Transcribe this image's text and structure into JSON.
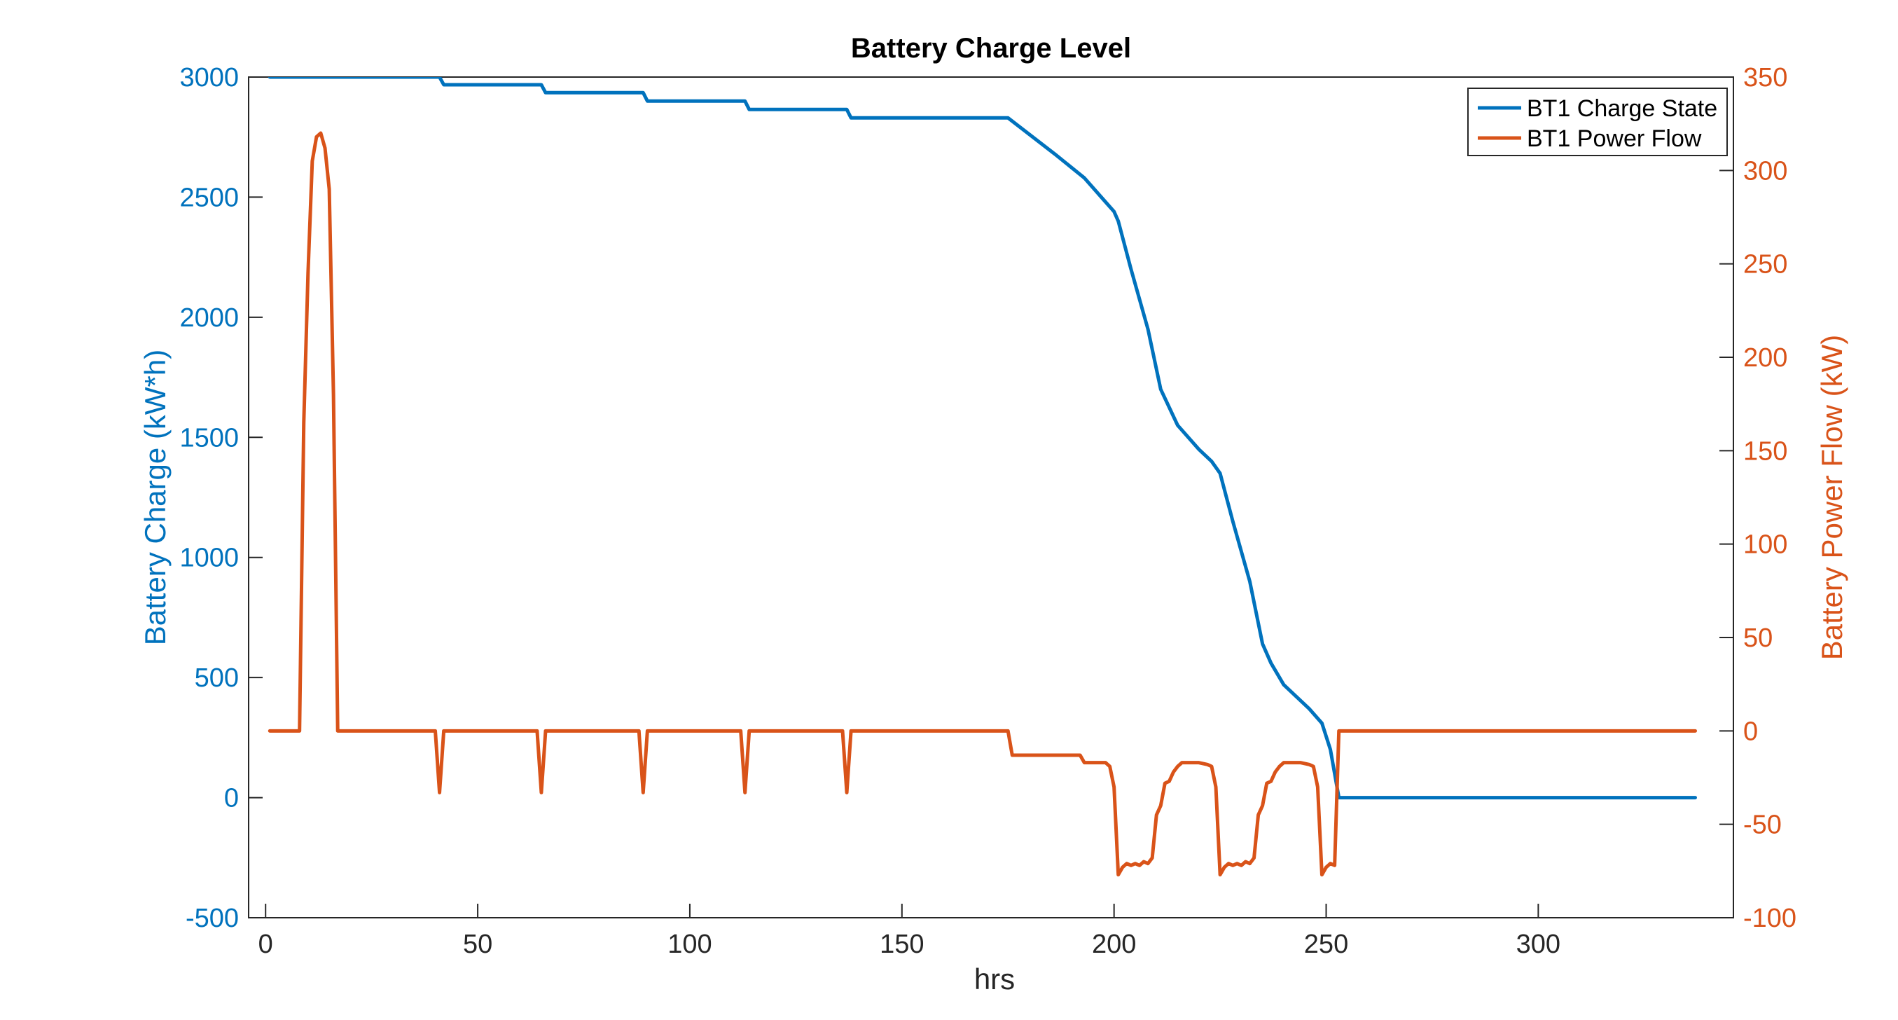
{
  "chart_data": {
    "type": "line",
    "title": "Battery Charge Level",
    "xlabel": "hrs",
    "ylabel_left": "Battery Charge (kW*h)",
    "ylabel_right": "Battery Power Flow (kW)",
    "xlim": [
      -4,
      346
    ],
    "ylim_left": [
      -500,
      3000
    ],
    "ylim_right": [
      -100,
      350
    ],
    "x_ticks": [
      0,
      50,
      100,
      150,
      200,
      250,
      300
    ],
    "y_ticks_left": [
      -500,
      0,
      500,
      1000,
      1500,
      2000,
      2500,
      3000
    ],
    "y_ticks_right": [
      -100,
      -50,
      0,
      50,
      100,
      150,
      200,
      250,
      300,
      350
    ],
    "grid": false,
    "legend_position": "top-right",
    "colors": {
      "left_axis": "#0072BD",
      "right_axis": "#D95319",
      "axes": "#262626"
    },
    "series": [
      {
        "name": "BT1 Charge State",
        "axis": "left",
        "color": "#0072BD",
        "points": [
          [
            1,
            3000
          ],
          [
            41,
            3000
          ],
          [
            42,
            2968
          ],
          [
            65,
            2968
          ],
          [
            66,
            2935
          ],
          [
            89,
            2935
          ],
          [
            90,
            2900
          ],
          [
            113,
            2900
          ],
          [
            114,
            2865
          ],
          [
            137,
            2865
          ],
          [
            138,
            2830
          ],
          [
            175,
            2830
          ],
          [
            186,
            2680
          ],
          [
            193,
            2580
          ],
          [
            198,
            2480
          ],
          [
            200,
            2440
          ],
          [
            201,
            2400
          ],
          [
            204,
            2200
          ],
          [
            208,
            1950
          ],
          [
            211,
            1700
          ],
          [
            215,
            1550
          ],
          [
            220,
            1450
          ],
          [
            223,
            1400
          ],
          [
            225,
            1350
          ],
          [
            228,
            1150
          ],
          [
            232,
            900
          ],
          [
            235,
            640
          ],
          [
            237,
            560
          ],
          [
            240,
            470
          ],
          [
            243,
            420
          ],
          [
            246,
            370
          ],
          [
            249,
            310
          ],
          [
            251,
            200
          ],
          [
            253,
            0
          ],
          [
            337,
            0
          ]
        ]
      },
      {
        "name": "BT1 Power Flow",
        "axis": "right",
        "color": "#D95319",
        "points": [
          [
            1,
            0
          ],
          [
            8,
            0
          ],
          [
            9,
            165
          ],
          [
            10,
            245
          ],
          [
            11,
            305
          ],
          [
            12,
            318
          ],
          [
            13,
            320
          ],
          [
            14,
            312
          ],
          [
            15,
            290
          ],
          [
            16,
            180
          ],
          [
            17,
            0
          ],
          [
            40,
            0
          ],
          [
            41,
            -33
          ],
          [
            42,
            0
          ],
          [
            64,
            0
          ],
          [
            65,
            -33
          ],
          [
            66,
            0
          ],
          [
            88,
            0
          ],
          [
            89,
            -33
          ],
          [
            90,
            0
          ],
          [
            112,
            0
          ],
          [
            113,
            -33
          ],
          [
            114,
            0
          ],
          [
            136,
            0
          ],
          [
            137,
            -33
          ],
          [
            138,
            0
          ],
          [
            175,
            0
          ],
          [
            176,
            -13
          ],
          [
            192,
            -13
          ],
          [
            193,
            -17
          ],
          [
            198,
            -17
          ],
          [
            199,
            -19
          ],
          [
            200,
            -30
          ],
          [
            201,
            -77
          ],
          [
            202,
            -73
          ],
          [
            203,
            -71
          ],
          [
            204,
            -72
          ],
          [
            205,
            -71
          ],
          [
            206,
            -72
          ],
          [
            207,
            -70
          ],
          [
            208,
            -71
          ],
          [
            209,
            -68
          ],
          [
            210,
            -45
          ],
          [
            211,
            -40
          ],
          [
            212,
            -28
          ],
          [
            213,
            -27
          ],
          [
            214,
            -22
          ],
          [
            215,
            -19
          ],
          [
            216,
            -17
          ],
          [
            220,
            -17
          ],
          [
            222,
            -18
          ],
          [
            223,
            -19
          ],
          [
            224,
            -30
          ],
          [
            225,
            -77
          ],
          [
            226,
            -73
          ],
          [
            227,
            -71
          ],
          [
            228,
            -72
          ],
          [
            229,
            -71
          ],
          [
            230,
            -72
          ],
          [
            231,
            -70
          ],
          [
            232,
            -71
          ],
          [
            233,
            -68
          ],
          [
            234,
            -45
          ],
          [
            235,
            -40
          ],
          [
            236,
            -28
          ],
          [
            237,
            -27
          ],
          [
            238,
            -22
          ],
          [
            239,
            -19
          ],
          [
            240,
            -17
          ],
          [
            244,
            -17
          ],
          [
            246,
            -18
          ],
          [
            247,
            -19
          ],
          [
            248,
            -30
          ],
          [
            249,
            -77
          ],
          [
            250,
            -73
          ],
          [
            251,
            -71
          ],
          [
            252,
            -72
          ],
          [
            253,
            0
          ],
          [
            337,
            0
          ]
        ]
      }
    ]
  }
}
